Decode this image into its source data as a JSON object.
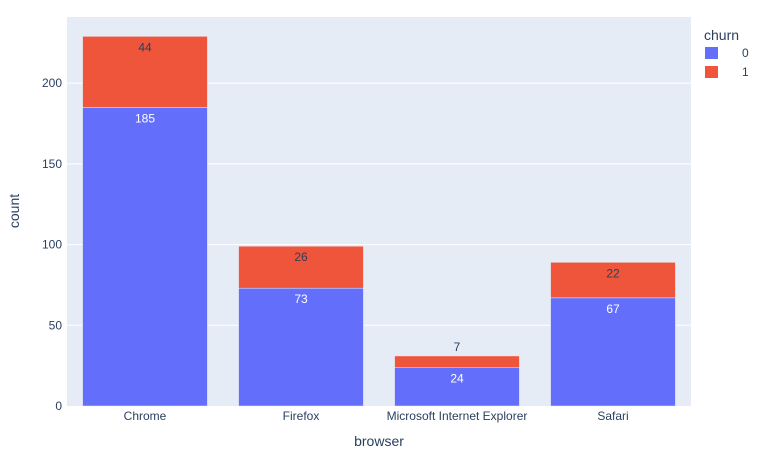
{
  "chart_data": {
    "type": "bar",
    "barmode": "stack",
    "categories": [
      "Chrome",
      "Firefox",
      "Microsoft Internet Explorer",
      "Safari"
    ],
    "series": [
      {
        "name": "0",
        "values": [
          185,
          73,
          24,
          67
        ],
        "color": "#636efa",
        "label_color": "#ffffff"
      },
      {
        "name": "1",
        "values": [
          44,
          26,
          7,
          22
        ],
        "color": "#ef553b",
        "label_color": "#2a3f5f"
      }
    ],
    "xlabel": "browser",
    "ylabel": "count",
    "ylim": [
      0,
      241
    ],
    "yticks": [
      0,
      50,
      100,
      150,
      200
    ],
    "legend_title": "churn",
    "legend_position": "top-right",
    "grid": true,
    "plot_bg": "#e5ecf6"
  }
}
